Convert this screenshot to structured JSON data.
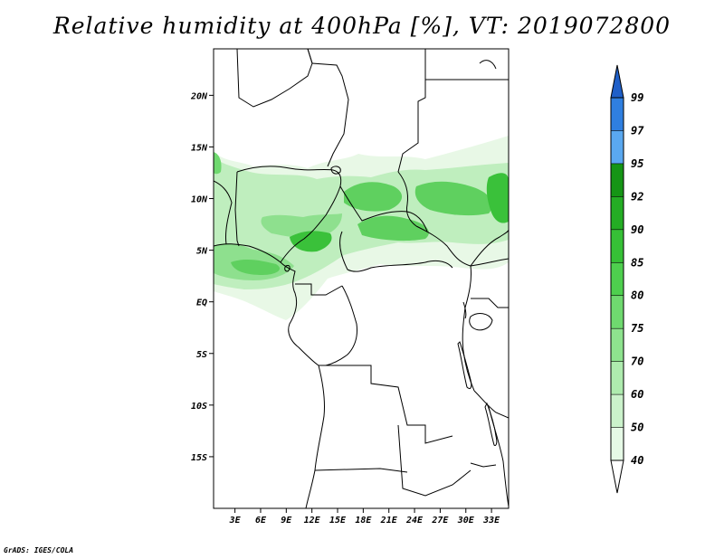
{
  "title": "Relative humidity at 400hPa [%], VT: 2019072800",
  "credit": "GrADS: IGES/COLA",
  "map": {
    "lat_ticks": [
      {
        "value": 20,
        "label": "20N"
      },
      {
        "value": 15,
        "label": "15N"
      },
      {
        "value": 10,
        "label": "10N"
      },
      {
        "value": 5,
        "label": "5N"
      },
      {
        "value": 0,
        "label": "EQ"
      },
      {
        "value": -5,
        "label": "5S"
      },
      {
        "value": -10,
        "label": "10S"
      },
      {
        "value": -15,
        "label": "15S"
      }
    ],
    "lon_ticks": [
      {
        "value": 3,
        "label": "3E"
      },
      {
        "value": 6,
        "label": "6E"
      },
      {
        "value": 9,
        "label": "9E"
      },
      {
        "value": 12,
        "label": "12E"
      },
      {
        "value": 15,
        "label": "15E"
      },
      {
        "value": 18,
        "label": "18E"
      },
      {
        "value": 21,
        "label": "21E"
      },
      {
        "value": 24,
        "label": "24E"
      },
      {
        "value": 27,
        "label": "27E"
      },
      {
        "value": 30,
        "label": "30E"
      },
      {
        "value": 33,
        "label": "33E"
      }
    ]
  },
  "colorbar": {
    "levels": [
      "40",
      "50",
      "60",
      "70",
      "75",
      "80",
      "85",
      "90",
      "92",
      "95",
      "97",
      "99"
    ],
    "colors": [
      "#ffffff",
      "#e6f9e6",
      "#cbf2cb",
      "#aeebae",
      "#8ee38e",
      "#6fd96f",
      "#4ecf4e",
      "#36c036",
      "#24ad24",
      "#159515",
      "#5aa8f0",
      "#2f7fe0",
      "#1f5fc8"
    ]
  }
}
